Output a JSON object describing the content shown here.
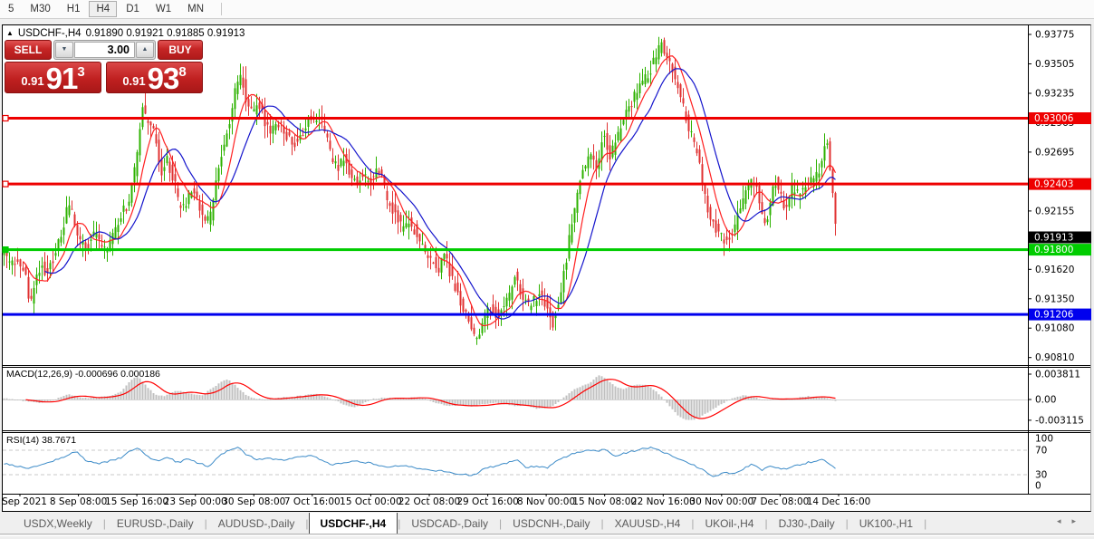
{
  "toolbar": {
    "timeframes": [
      "5",
      "M30",
      "H1",
      "H4",
      "D1",
      "W1",
      "MN"
    ],
    "active": "H4"
  },
  "chart_header": {
    "collapse_icon": "▲",
    "symbol": "USDCHF-,H4",
    "ohlc": "0.91890 0.91921 0.91885 0.91913"
  },
  "trade_panel": {
    "sell_label": "SELL",
    "buy_label": "BUY",
    "volume": "3.00",
    "spin_down_icon": "▼",
    "spin_up_icon": "▲",
    "sell_price": {
      "prefix": "0.91",
      "big": "91",
      "sup": "3"
    },
    "buy_price": {
      "prefix": "0.91",
      "big": "93",
      "sup": "8"
    }
  },
  "colors": {
    "up": "#2db200",
    "down": "#e03232",
    "ma_fast": "#ff2020",
    "ma_slow": "#1414cc",
    "macd_hist": "#c0c0c0",
    "macd_signal": "#ff0000",
    "rsi_line": "#3c8bc8",
    "level_red": "#ee0000",
    "level_green": "#00cc00",
    "level_blue": "#0000ee",
    "current_marker_bg": "#000000"
  },
  "chart_data": [
    {
      "type": "candlestick",
      "title": "USDCHF-,H4",
      "current_ohlc": {
        "open": 0.9189,
        "high": 0.91921,
        "low": 0.91885,
        "close": 0.91913
      },
      "y_ticks": [
        "0.93775",
        "0.93505",
        "0.93235",
        "0.92965",
        "0.92695",
        "0.92155",
        "0.91620",
        "0.91350",
        "0.91080",
        "0.90810"
      ],
      "x_labels": [
        "1 Sep 2021",
        "8 Sep 08:00",
        "15 Sep 16:00",
        "23 Sep 00:00",
        "30 Sep 08:00",
        "7 Oct 16:00",
        "15 Oct 00:00",
        "22 Oct 08:00",
        "29 Oct 16:00",
        "8 Nov 00:00",
        "15 Nov 08:00",
        "22 Nov 16:00",
        "30 Nov 00:00",
        "7 Dec 08:00",
        "14 Dec 16:00"
      ],
      "horizontal_levels": [
        {
          "price": 0.93006,
          "color": "level_red",
          "marker": "0.93006",
          "handle": "hollow"
        },
        {
          "price": 0.92403,
          "color": "level_red",
          "marker": "0.92403",
          "handle": "hollow"
        },
        {
          "price": 0.918,
          "color": "level_green",
          "marker": "0.91800",
          "handle": "filled"
        },
        {
          "price": 0.91206,
          "color": "level_blue",
          "marker": "0.91206",
          "handle": "none"
        }
      ],
      "current_price_marker": {
        "label": "0.91913",
        "price": 0.91913
      },
      "moving_averages": [
        {
          "name": "fast",
          "color_key": "ma_fast",
          "window": 8
        },
        {
          "name": "slow",
          "color_key": "ma_slow",
          "window": 16
        }
      ],
      "price_path_anchors": [
        [
          3,
          0.9178
        ],
        [
          12,
          0.9165
        ],
        [
          20,
          0.917
        ],
        [
          28,
          0.9155
        ],
        [
          33,
          0.9125
        ],
        [
          38,
          0.9152
        ],
        [
          45,
          0.9166
        ],
        [
          52,
          0.9158
        ],
        [
          60,
          0.9176
        ],
        [
          68,
          0.9196
        ],
        [
          75,
          0.9222
        ],
        [
          82,
          0.9206
        ],
        [
          88,
          0.9186
        ],
        [
          95,
          0.918
        ],
        [
          103,
          0.9196
        ],
        [
          110,
          0.9184
        ],
        [
          118,
          0.9181
        ],
        [
          126,
          0.9198
        ],
        [
          134,
          0.9214
        ],
        [
          142,
          0.9222
        ],
        [
          150,
          0.9262
        ],
        [
          157,
          0.9308
        ],
        [
          163,
          0.9295
        ],
        [
          170,
          0.9286
        ],
        [
          177,
          0.9251
        ],
        [
          184,
          0.9262
        ],
        [
          191,
          0.9246
        ],
        [
          198,
          0.9217
        ],
        [
          205,
          0.9223
        ],
        [
          212,
          0.9236
        ],
        [
          219,
          0.9221
        ],
        [
          226,
          0.9203
        ],
        [
          233,
          0.9213
        ],
        [
          240,
          0.9256
        ],
        [
          247,
          0.9276
        ],
        [
          254,
          0.9301
        ],
        [
          260,
          0.9331
        ],
        [
          266,
          0.9341
        ],
        [
          272,
          0.9316
        ],
        [
          278,
          0.9303
        ],
        [
          284,
          0.9318
        ],
        [
          290,
          0.9301
        ],
        [
          297,
          0.9286
        ],
        [
          304,
          0.9296
        ],
        [
          311,
          0.9292
        ],
        [
          318,
          0.9281
        ],
        [
          325,
          0.9279
        ],
        [
          332,
          0.9286
        ],
        [
          339,
          0.9298
        ],
        [
          346,
          0.9297
        ],
        [
          353,
          0.9301
        ],
        [
          360,
          0.9286
        ],
        [
          365,
          0.9263
        ],
        [
          372,
          0.9256
        ],
        [
          379,
          0.9263
        ],
        [
          386,
          0.9249
        ],
        [
          393,
          0.9243
        ],
        [
          400,
          0.9249
        ],
        [
          407,
          0.9241
        ],
        [
          414,
          0.9253
        ],
        [
          421,
          0.9246
        ],
        [
          428,
          0.9223
        ],
        [
          435,
          0.9216
        ],
        [
          442,
          0.9201
        ],
        [
          449,
          0.9206
        ],
        [
          456,
          0.9201
        ],
        [
          463,
          0.9186
        ],
        [
          470,
          0.9176
        ],
        [
          477,
          0.9169
        ],
        [
          484,
          0.9163
        ],
        [
          491,
          0.9179
        ],
        [
          498,
          0.9153
        ],
        [
          505,
          0.9139
        ],
        [
          512,
          0.9123
        ],
        [
          519,
          0.9111
        ],
        [
          526,
          0.9096
        ],
        [
          533,
          0.9119
        ],
        [
          540,
          0.9126
        ],
        [
          547,
          0.9121
        ],
        [
          554,
          0.9129
        ],
        [
          561,
          0.9136
        ],
        [
          568,
          0.9156
        ],
        [
          575,
          0.9141
        ],
        [
          582,
          0.9129
        ],
        [
          589,
          0.9133
        ],
        [
          596,
          0.9141
        ],
        [
          603,
          0.9129
        ],
        [
          610,
          0.9113
        ],
        [
          617,
          0.9136
        ],
        [
          624,
          0.9166
        ],
        [
          631,
          0.9206
        ],
        [
          638,
          0.9236
        ],
        [
          645,
          0.9256
        ],
        [
          652,
          0.9266
        ],
        [
          659,
          0.9256
        ],
        [
          666,
          0.9289
        ],
        [
          673,
          0.9266
        ],
        [
          680,
          0.9279
        ],
        [
          687,
          0.9296
        ],
        [
          694,
          0.9311
        ],
        [
          701,
          0.9323
        ],
        [
          708,
          0.9331
        ],
        [
          715,
          0.9341
        ],
        [
          722,
          0.9353
        ],
        [
          729,
          0.9369
        ],
        [
          734,
          0.9361
        ],
        [
          739,
          0.9351
        ],
        [
          744,
          0.9341
        ],
        [
          750,
          0.9323
        ],
        [
          757,
          0.9301
        ],
        [
          764,
          0.9283
        ],
        [
          771,
          0.9261
        ],
        [
          777,
          0.9231
        ],
        [
          783,
          0.9213
        ],
        [
          789,
          0.9201
        ],
        [
          795,
          0.9191
        ],
        [
          801,
          0.9189
        ],
        [
          807,
          0.9193
        ],
        [
          813,
          0.9206
        ],
        [
          819,
          0.9223
        ],
        [
          825,
          0.9239
        ],
        [
          831,
          0.9246
        ],
        [
          837,
          0.9231
        ],
        [
          843,
          0.9199
        ],
        [
          849,
          0.9219
        ],
        [
          855,
          0.9246
        ],
        [
          861,
          0.9229
        ],
        [
          867,
          0.9216
        ],
        [
          873,
          0.9236
        ],
        [
          879,
          0.9233
        ],
        [
          885,
          0.9231
        ],
        [
          891,
          0.9243
        ],
        [
          897,
          0.9246
        ],
        [
          903,
          0.9249
        ],
        [
          908,
          0.9263
        ],
        [
          912,
          0.9286
        ],
        [
          916,
          0.9253
        ],
        [
          920,
          0.9223
        ],
        [
          924,
          0.9191
        ]
      ]
    },
    {
      "type": "area",
      "name": "MACD",
      "label": "MACD(12,26,9)",
      "current_values": "-0.000696 0.000186",
      "y_ticks": [
        "0.003811",
        "0.00",
        "-0.003115"
      ],
      "value_scale": 0.0001,
      "anchors": [
        [
          4,
          2
        ],
        [
          25,
          -2
        ],
        [
          45,
          -5
        ],
        [
          60,
          0
        ],
        [
          75,
          8
        ],
        [
          90,
          2
        ],
        [
          105,
          3
        ],
        [
          120,
          5
        ],
        [
          133,
          12
        ],
        [
          145,
          30
        ],
        [
          152,
          35
        ],
        [
          160,
          22
        ],
        [
          170,
          8
        ],
        [
          180,
          5
        ],
        [
          192,
          12
        ],
        [
          200,
          13
        ],
        [
          210,
          8
        ],
        [
          222,
          6
        ],
        [
          235,
          18
        ],
        [
          245,
          28
        ],
        [
          252,
          30
        ],
        [
          262,
          18
        ],
        [
          272,
          6
        ],
        [
          282,
          1
        ],
        [
          295,
          0
        ],
        [
          310,
          3
        ],
        [
          322,
          4
        ],
        [
          335,
          6
        ],
        [
          348,
          9
        ],
        [
          358,
          4
        ],
        [
          368,
          0
        ],
        [
          380,
          -8
        ],
        [
          390,
          -12
        ],
        [
          400,
          -6
        ],
        [
          412,
          1
        ],
        [
          425,
          3
        ],
        [
          438,
          1
        ],
        [
          450,
          2
        ],
        [
          462,
          4
        ],
        [
          472,
          0
        ],
        [
          482,
          -6
        ],
        [
          495,
          -10
        ],
        [
          508,
          -8
        ],
        [
          520,
          -11
        ],
        [
          532,
          -7
        ],
        [
          545,
          -5
        ],
        [
          558,
          -7
        ],
        [
          570,
          -10
        ],
        [
          582,
          -9
        ],
        [
          592,
          -14
        ],
        [
          602,
          -13
        ],
        [
          612,
          -8
        ],
        [
          622,
          3
        ],
        [
          632,
          14
        ],
        [
          642,
          20
        ],
        [
          652,
          26
        ],
        [
          660,
          37
        ],
        [
          668,
          32
        ],
        [
          678,
          20
        ],
        [
          688,
          16
        ],
        [
          698,
          21
        ],
        [
          708,
          23
        ],
        [
          716,
          20
        ],
        [
          724,
          12
        ],
        [
          732,
          2
        ],
        [
          740,
          -12
        ],
        [
          748,
          -24
        ],
        [
          756,
          -30
        ],
        [
          764,
          -31
        ],
        [
          772,
          -27
        ],
        [
          780,
          -20
        ],
        [
          790,
          -12
        ],
        [
          800,
          -4
        ],
        [
          810,
          3
        ],
        [
          820,
          6
        ],
        [
          828,
          5
        ],
        [
          836,
          2
        ],
        [
          844,
          -1
        ],
        [
          852,
          1
        ],
        [
          860,
          2
        ],
        [
          868,
          1
        ],
        [
          876,
          0
        ],
        [
          884,
          4
        ],
        [
          892,
          5
        ],
        [
          900,
          4
        ],
        [
          908,
          3
        ],
        [
          916,
          1
        ],
        [
          924,
          -3
        ]
      ]
    },
    {
      "type": "line",
      "name": "RSI",
      "label": "RSI(14)",
      "current_value": "38.7671",
      "levels": [
        70,
        30
      ],
      "y_ticks": [
        "100",
        "70",
        "30",
        "0"
      ],
      "anchors": [
        [
          4,
          48
        ],
        [
          18,
          44
        ],
        [
          32,
          41
        ],
        [
          46,
          46
        ],
        [
          60,
          54
        ],
        [
          74,
          62
        ],
        [
          85,
          68
        ],
        [
          95,
          52
        ],
        [
          108,
          48
        ],
        [
          120,
          52
        ],
        [
          133,
          58
        ],
        [
          145,
          70
        ],
        [
          153,
          73
        ],
        [
          162,
          60
        ],
        [
          173,
          52
        ],
        [
          185,
          58
        ],
        [
          196,
          50
        ],
        [
          208,
          56
        ],
        [
          220,
          48
        ],
        [
          230,
          44
        ],
        [
          242,
          62
        ],
        [
          252,
          70
        ],
        [
          262,
          75
        ],
        [
          272,
          62
        ],
        [
          284,
          54
        ],
        [
          296,
          58
        ],
        [
          308,
          53
        ],
        [
          320,
          56
        ],
        [
          332,
          60
        ],
        [
          344,
          62
        ],
        [
          354,
          55
        ],
        [
          366,
          45
        ],
        [
          378,
          50
        ],
        [
          390,
          52
        ],
        [
          402,
          50
        ],
        [
          414,
          48
        ],
        [
          426,
          42
        ],
        [
          438,
          45
        ],
        [
          450,
          44
        ],
        [
          462,
          40
        ],
        [
          474,
          37
        ],
        [
          486,
          36
        ],
        [
          498,
          33
        ],
        [
          510,
          31
        ],
        [
          522,
          29
        ],
        [
          534,
          40
        ],
        [
          546,
          44
        ],
        [
          558,
          48
        ],
        [
          570,
          54
        ],
        [
          580,
          42
        ],
        [
          592,
          44
        ],
        [
          604,
          42
        ],
        [
          616,
          54
        ],
        [
          628,
          62
        ],
        [
          640,
          68
        ],
        [
          650,
          71
        ],
        [
          660,
          67
        ],
        [
          668,
          73
        ],
        [
          678,
          61
        ],
        [
          690,
          65
        ],
        [
          700,
          69
        ],
        [
          710,
          72
        ],
        [
          718,
          74
        ],
        [
          728,
          70
        ],
        [
          738,
          63
        ],
        [
          748,
          56
        ],
        [
          758,
          50
        ],
        [
          768,
          44
        ],
        [
          778,
          36
        ],
        [
          786,
          28
        ],
        [
          794,
          30
        ],
        [
          802,
          34
        ],
        [
          810,
          31
        ],
        [
          820,
          40
        ],
        [
          830,
          48
        ],
        [
          840,
          37
        ],
        [
          850,
          45
        ],
        [
          858,
          41
        ],
        [
          866,
          39
        ],
        [
          876,
          44
        ],
        [
          884,
          47
        ],
        [
          892,
          50
        ],
        [
          900,
          52
        ],
        [
          908,
          56
        ],
        [
          914,
          50
        ],
        [
          920,
          44
        ],
        [
          924,
          39
        ]
      ]
    }
  ],
  "tabs": {
    "items": [
      "USDX,Weekly",
      "EURUSD-,Daily",
      "AUDUSD-,Daily",
      "USDCHF-,H4",
      "USDCAD-,Daily",
      "USDCNH-,Daily",
      "XAUUSD-,H4",
      "UKOil-,H4",
      "DJ30-,Daily",
      "UK100-,H1"
    ],
    "active": "USDCHF-,H4",
    "scroll_left_icon": "◂",
    "scroll_right_icon": "▸"
  }
}
